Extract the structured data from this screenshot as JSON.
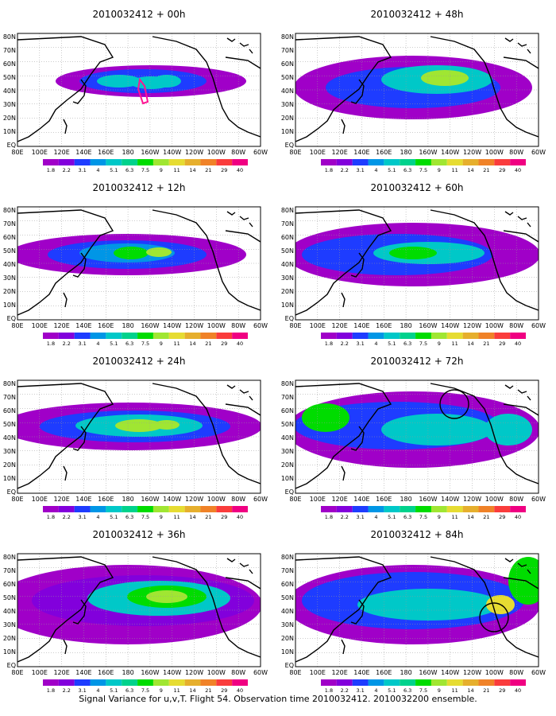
{
  "panels": [
    {
      "title": "2010032412 + 00h",
      "circles": 0,
      "marker": true
    },
    {
      "title": "2010032412 + 12h",
      "circles": 0,
      "marker": false
    },
    {
      "title": "2010032412 + 24h",
      "circles": 0,
      "marker": false
    },
    {
      "title": "2010032412 + 36h",
      "circles": 0,
      "marker": false
    },
    {
      "title": "2010032412 + 48h",
      "circles": 0,
      "marker": false
    },
    {
      "title": "2010032412 + 60h",
      "circles": 0,
      "marker": false
    },
    {
      "title": "2010032412 + 72h",
      "circles": 1,
      "marker": false
    },
    {
      "title": "2010032412 + 84h",
      "circles": 1,
      "marker": false
    }
  ],
  "lat_labels": [
    "80N",
    "70N",
    "60N",
    "50N",
    "40N",
    "30N",
    "20N",
    "10N",
    "EQ"
  ],
  "lon_labels": [
    "80E",
    "100E",
    "120E",
    "140E",
    "160E",
    "180",
    "160W",
    "140W",
    "120W",
    "100W",
    "80W",
    "60W"
  ],
  "colorbar": {
    "labels": [
      "1.8",
      "2.2",
      "3.1",
      "4",
      "5.1",
      "6.3",
      "7.5",
      "9",
      "11",
      "14",
      "21",
      "29",
      "40"
    ],
    "colors": [
      "#a000c8",
      "#8200dc",
      "#1e3cff",
      "#0096e6",
      "#00c8c8",
      "#00d28c",
      "#00dc00",
      "#a0e632",
      "#e6dc32",
      "#e6af2d",
      "#f08228",
      "#fa3c3c",
      "#f00082"
    ]
  },
  "caption": "Signal Variance for u,v,T. Flight 54. Observation time 2010032412. 2010032200 ensemble."
}
